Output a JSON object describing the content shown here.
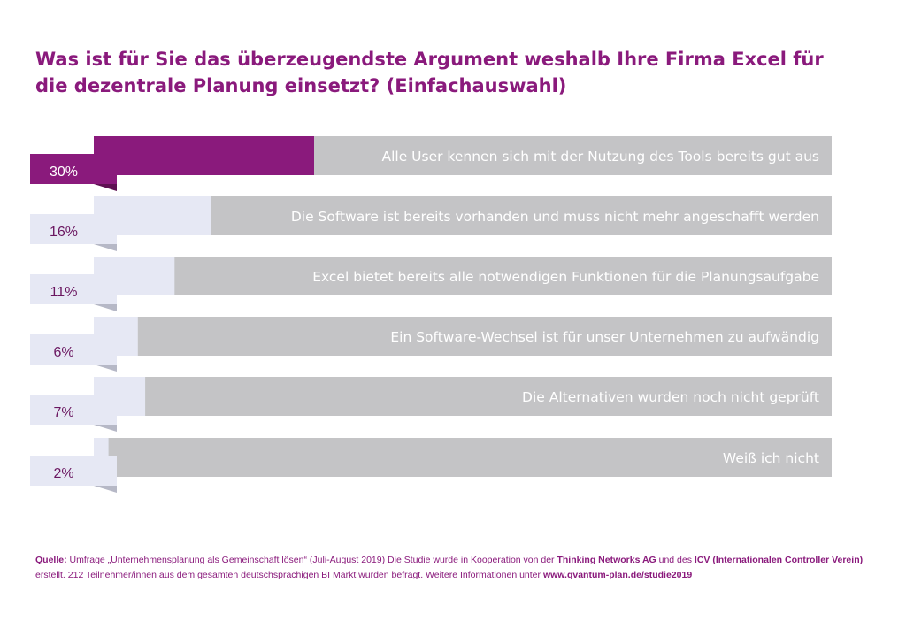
{
  "title_line1": "Was ist für Sie das überzeugendste Argument weshalb Ihre Firma Excel für",
  "title_line2": "die dezentrale Planung einsetzt? (Einfachauswahl)",
  "colors": {
    "accent": "#8a1a7c",
    "bar_grey": "#c4c4c6",
    "light_fill": "#e6e8f4",
    "fold_dark": "#5e1052",
    "fold_light": "#b6b8c6",
    "label_dark": "#6a1660"
  },
  "chart_data": {
    "type": "bar",
    "orientation": "horizontal",
    "categories": [
      "Alle User kennen sich mit der Nutzung des Tools bereits gut aus",
      "Die Software ist bereits vorhanden und muss nicht mehr angeschafft werden",
      "Excel bietet bereits alle notwendigen Funktionen für die Planungsaufgabe",
      "Ein Software-Wechsel ist für unser Unternehmen zu aufwändig",
      "Die Alternativen wurden noch nicht geprüft",
      "Weiß ich nicht"
    ],
    "values": [
      30,
      16,
      11,
      6,
      7,
      2
    ],
    "value_labels": [
      "30%",
      "16%",
      "11%",
      "6%",
      "7%",
      "2%"
    ],
    "unit": "%",
    "xlim": [
      0,
      100
    ],
    "grid": false,
    "legend": "none",
    "highlight_index": 0
  },
  "source": {
    "label": "Quelle:",
    "part1": " Umfrage „Unternehmensplanung als Gemeinschaft lösen“ (Juli-August 2019)  Die Studie wurde in Kooperation von der ",
    "org1": "Thinking Networks AG",
    "part2": " und des ",
    "org2": "ICV  (Internationalen Controller Verein)",
    "part3": "erstellt. 212 Teilnehmer/innen aus dem gesamten deutschsprachigen BI Markt wurden befragt. Weitere Informationen unter ",
    "url": "www.qvantum-plan.de/studie2019"
  }
}
